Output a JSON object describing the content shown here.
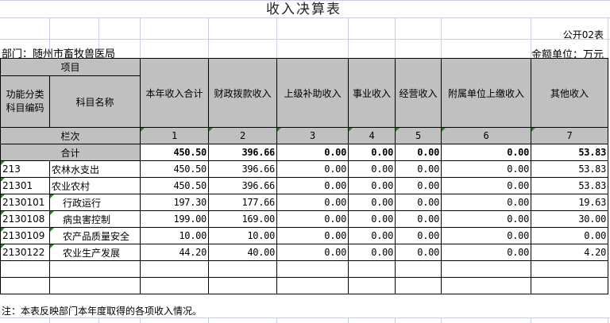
{
  "title": "收入决算表",
  "table_no": "公开02表",
  "department": "部门：随州市畜牧兽医局",
  "unit": "金额单位：万元",
  "header": {
    "item": "项目",
    "code": "功能分类科目编码",
    "name": "科目名称",
    "columns": [
      "本年收入合计",
      "财政拨款收入",
      "上级补助收入",
      "事业收入",
      "经营收入",
      "附属单位上缴收入",
      "其他收入"
    ],
    "row_index_label": "栏次",
    "column_numbers": [
      "1",
      "2",
      "3",
      "4",
      "5",
      "6",
      "7"
    ]
  },
  "total": {
    "label": "合计",
    "values": [
      "450.50",
      "396.66",
      "0.00",
      "0.00",
      "0.00",
      "0.00",
      "53.83"
    ]
  },
  "rows": [
    {
      "code": "213",
      "name": "农林水支出",
      "indent": false,
      "values": [
        "450.50",
        "396.66",
        "0.00",
        "0.00",
        "0.00",
        "0.00",
        "53.83"
      ]
    },
    {
      "code": "21301",
      "name": "农业农村",
      "indent": false,
      "values": [
        "450.50",
        "396.66",
        "0.00",
        "0.00",
        "0.00",
        "0.00",
        "53.83"
      ]
    },
    {
      "code": "2130101",
      "name": "行政运行",
      "indent": true,
      "values": [
        "197.30",
        "177.66",
        "0.00",
        "0.00",
        "0.00",
        "0.00",
        "19.63"
      ]
    },
    {
      "code": "2130108",
      "name": "病虫害控制",
      "indent": true,
      "values": [
        "199.00",
        "169.00",
        "0.00",
        "0.00",
        "0.00",
        "0.00",
        "30.00"
      ]
    },
    {
      "code": "2130109",
      "name": "农产品质量安全",
      "indent": true,
      "values": [
        "10.00",
        "10.00",
        "0.00",
        "0.00",
        "0.00",
        "0.00",
        "0.00"
      ]
    },
    {
      "code": "2130122",
      "name": "农业生产发展",
      "indent": true,
      "values": [
        "44.20",
        "40.00",
        "0.00",
        "0.00",
        "0.00",
        "0.00",
        "4.20"
      ]
    }
  ],
  "blank_rows": 2,
  "note": "注：本表反映部门本年度取得的各项收入情况。"
}
